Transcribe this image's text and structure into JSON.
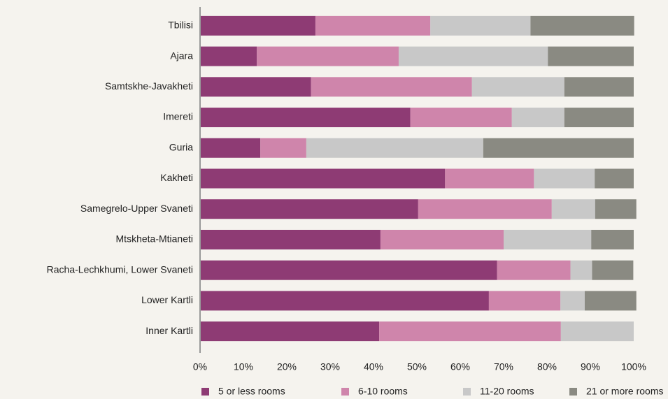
{
  "chart_data": {
    "type": "stacked_barh",
    "categories": [
      "Tbilisi",
      "Ajara",
      "Samtskhe-Javakheti",
      "Imereti",
      "Guria",
      "Kakheti",
      "Samegrelo-Upper Svaneti",
      "Mtskheta-Mtianeti",
      "Racha-Lechkhumi, Lower Svaneti",
      "Lower Kartli",
      "Inner Kartli"
    ],
    "series": [
      {
        "name": "5 or less rooms",
        "color": "#8e3b74",
        "values": [
          26.6,
          13.1,
          25.6,
          48.5,
          13.9,
          56.5,
          50.3,
          41.6,
          68.5,
          66.6,
          41.3
        ]
      },
      {
        "name": "6-10 rooms",
        "color": "#cf85ab",
        "values": [
          26.5,
          32.7,
          37.1,
          23.4,
          10.6,
          20.5,
          30.8,
          28.4,
          16.9,
          16.5,
          41.9
        ]
      },
      {
        "name": "11-20 rooms",
        "color": "#c8c8c8",
        "values": [
          23.1,
          34.4,
          21.3,
          12.1,
          40.8,
          14.0,
          10.0,
          20.2,
          5.0,
          5.6,
          16.8
        ]
      },
      {
        "name": "21 or more rooms",
        "color": "#8a8a82",
        "values": [
          23.9,
          19.8,
          16.0,
          16.0,
          34.7,
          9.0,
          9.5,
          9.8,
          9.5,
          11.9,
          0
        ]
      }
    ],
    "xlim": [
      0,
      100
    ],
    "xticks": [
      {
        "value": 0,
        "label": "0%"
      },
      {
        "value": 10,
        "label": "10%"
      },
      {
        "value": 20,
        "label": "20%"
      },
      {
        "value": 30,
        "label": "30%"
      },
      {
        "value": 40,
        "label": "40%"
      },
      {
        "value": 50,
        "label": "50%"
      },
      {
        "value": 60,
        "label": "60%"
      },
      {
        "value": 70,
        "label": "70%"
      },
      {
        "value": 80,
        "label": "80%"
      },
      {
        "value": 90,
        "label": "90%"
      },
      {
        "value": 100,
        "label": "100%"
      }
    ],
    "legend": "bottom"
  }
}
